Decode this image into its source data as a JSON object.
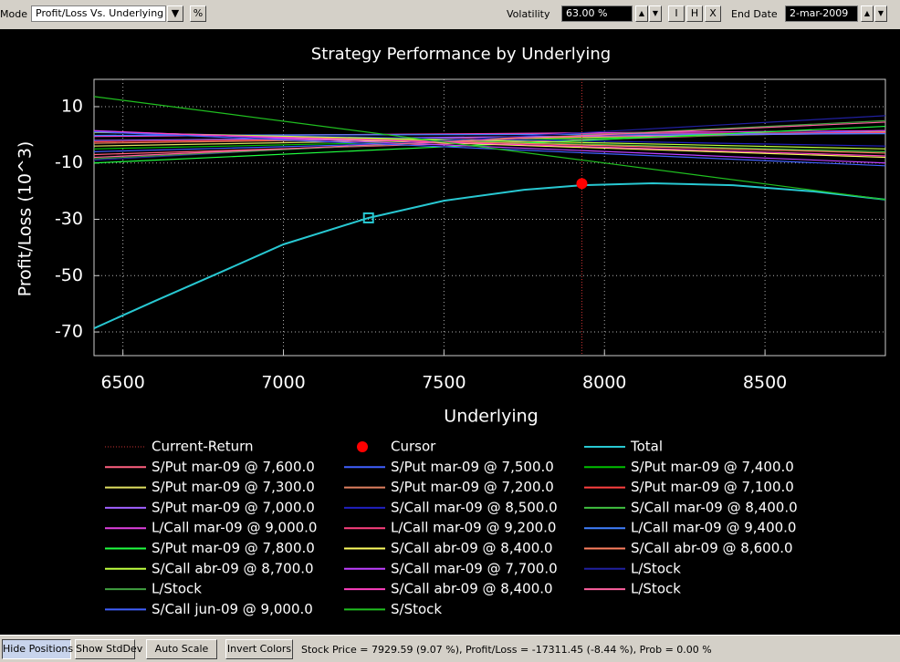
{
  "toolbar": {
    "mode_label": "Mode",
    "mode_value": "Profit/Loss Vs. Underlying",
    "percent_button": "%",
    "volatility_label": "Volatility",
    "volatility_value": "63.00 %",
    "buttons": [
      "I",
      "H",
      "X"
    ],
    "end_date_label": "End Date",
    "end_date_value": "2-mar-2009"
  },
  "chart_data": {
    "type": "line",
    "title": "Strategy Performance by Underlying",
    "x_label": "Underlying",
    "y_label": "Profit/Loss (10^3)",
    "xlim": [
      6410,
      8875
    ],
    "ylim": [
      -78.4,
      19.7
    ],
    "xticks": [
      6500,
      7000,
      7500,
      8000,
      8500
    ],
    "yticks": [
      10,
      -10,
      -30,
      -50,
      -70
    ],
    "grid": true,
    "series": [
      {
        "name": "Current-Return",
        "color": "#c83232",
        "kind": "vline",
        "x": [
          7929.59
        ]
      },
      {
        "name": "Cursor",
        "color": "#ff0000",
        "kind": "point",
        "x": [
          7929.59
        ],
        "values": [
          -17.31145
        ]
      },
      {
        "name": "Total",
        "color": "#28c8d2",
        "kind": "line",
        "x": [
          6410,
          6600,
          6800,
          7000,
          7265,
          7500,
          7750,
          7930,
          8150,
          8400,
          8650,
          8875
        ],
        "values": [
          -68.7,
          -59,
          -49,
          -38.9,
          -29.5,
          -23.4,
          -19.5,
          -17.9,
          -17.2,
          -17.9,
          -20.1,
          -23
        ],
        "marker_x": 7265,
        "marker_y": -29.5
      },
      {
        "name": "S/Put mar-09 @ 7,600.0",
        "color": "#ff6080",
        "kind": "line",
        "x": [
          6410,
          8875
        ],
        "values": [
          -7,
          1.5
        ]
      },
      {
        "name": "S/Put mar-09 @ 7,500.0",
        "color": "#4060ff",
        "kind": "line",
        "x": [
          6410,
          8875
        ],
        "values": [
          -6,
          1.5
        ]
      },
      {
        "name": "S/Put mar-09 @ 7,400.0",
        "color": "#00c000",
        "kind": "line",
        "x": [
          6410,
          8875
        ],
        "values": [
          -5,
          1
        ]
      },
      {
        "name": "S/Put mar-09 @ 7,300.0",
        "color": "#e0e060",
        "kind": "line",
        "x": [
          6410,
          8875
        ],
        "values": [
          -4,
          1
        ]
      },
      {
        "name": "S/Put mar-09 @ 7,200.0",
        "color": "#e08060",
        "kind": "line",
        "x": [
          6410,
          8875
        ],
        "values": [
          -3,
          0.8
        ]
      },
      {
        "name": "S/Put mar-09 @ 7,100.0",
        "color": "#ff4040",
        "kind": "line",
        "x": [
          6410,
          8875
        ],
        "values": [
          -2.5,
          0.6
        ]
      },
      {
        "name": "S/Put mar-09 @ 7,000.0",
        "color": "#a060ff",
        "kind": "line",
        "x": [
          6410,
          8875
        ],
        "values": [
          -2,
          0.5
        ]
      },
      {
        "name": "S/Call mar-09 @ 8,500.0",
        "color": "#2020c0",
        "kind": "line",
        "x": [
          6410,
          8875
        ],
        "values": [
          0.8,
          -4
        ]
      },
      {
        "name": "S/Call mar-09 @ 8,400.0",
        "color": "#40c040",
        "kind": "line",
        "x": [
          6410,
          8875
        ],
        "values": [
          1,
          -6
        ]
      },
      {
        "name": "L/Call mar-09 @ 9,000.0",
        "color": "#e040e0",
        "kind": "line",
        "x": [
          6410,
          8875
        ],
        "values": [
          -0.6,
          1.5
        ]
      },
      {
        "name": "L/Call mar-09 @ 9,200.0",
        "color": "#ff4080",
        "kind": "line",
        "x": [
          6410,
          8875
        ],
        "values": [
          -0.3,
          0.8
        ]
      },
      {
        "name": "L/Call mar-09 @ 9,400.0",
        "color": "#4080ff",
        "kind": "line",
        "x": [
          6410,
          8875
        ],
        "values": [
          -0.2,
          0.4
        ]
      },
      {
        "name": "S/Put mar-09 @ 7,800.0",
        "color": "#20ff40",
        "kind": "line",
        "x": [
          6410,
          8875
        ],
        "values": [
          -10,
          3
        ]
      },
      {
        "name": "S/Call abr-09 @ 8,400.0",
        "color": "#ffff60",
        "kind": "line",
        "x": [
          6410,
          8875
        ],
        "values": [
          1.2,
          -8
        ]
      },
      {
        "name": "S/Call abr-09 @ 8,600.0",
        "color": "#ff8060",
        "kind": "line",
        "x": [
          6410,
          8875
        ],
        "values": [
          1,
          -6.5
        ]
      },
      {
        "name": "S/Call abr-09 @ 8,700.0",
        "color": "#c0ff40",
        "kind": "line",
        "x": [
          6410,
          8875
        ],
        "values": [
          0.9,
          -5
        ]
      },
      {
        "name": "S/Call mar-09 @ 7,700.0",
        "color": "#c040ff",
        "kind": "line",
        "x": [
          6410,
          8875
        ],
        "values": [
          1.5,
          -10
        ]
      },
      {
        "name": "L/Stock",
        "color": "#2020a0",
        "kind": "line",
        "x": [
          6410,
          8875
        ],
        "values": [
          -9,
          6.8
        ]
      },
      {
        "name": "L/Stock",
        "color": "#40a040",
        "kind": "line",
        "x": [
          6410,
          8875
        ],
        "values": [
          -8.5,
          5
        ]
      },
      {
        "name": "S/Call abr-09 @ 8,400.0",
        "color": "#ff40c0",
        "kind": "line",
        "x": [
          6410,
          8875
        ],
        "values": [
          1.2,
          -7.5
        ]
      },
      {
        "name": "L/Stock",
        "color": "#ff60a0",
        "kind": "line",
        "x": [
          6410,
          8875
        ],
        "values": [
          -8,
          4.5
        ]
      },
      {
        "name": "S/Call jun-09 @ 9,000.0",
        "color": "#4060ff",
        "kind": "line",
        "x": [
          6410,
          8875
        ],
        "values": [
          1.1,
          -11
        ]
      },
      {
        "name": "S/Stock",
        "color": "#20c020",
        "kind": "line",
        "x": [
          6410,
          8875
        ],
        "values": [
          13.6,
          -23
        ]
      }
    ]
  },
  "status_bar": {
    "buttons": [
      "Hide Positions",
      "Show StdDev",
      "Auto Scale",
      "Invert Colors"
    ],
    "info": "Stock Price = 7929.59 (9.07 %), Profit/Loss = -17311.45 (-8.44 %), Prob = 0.00 %"
  }
}
